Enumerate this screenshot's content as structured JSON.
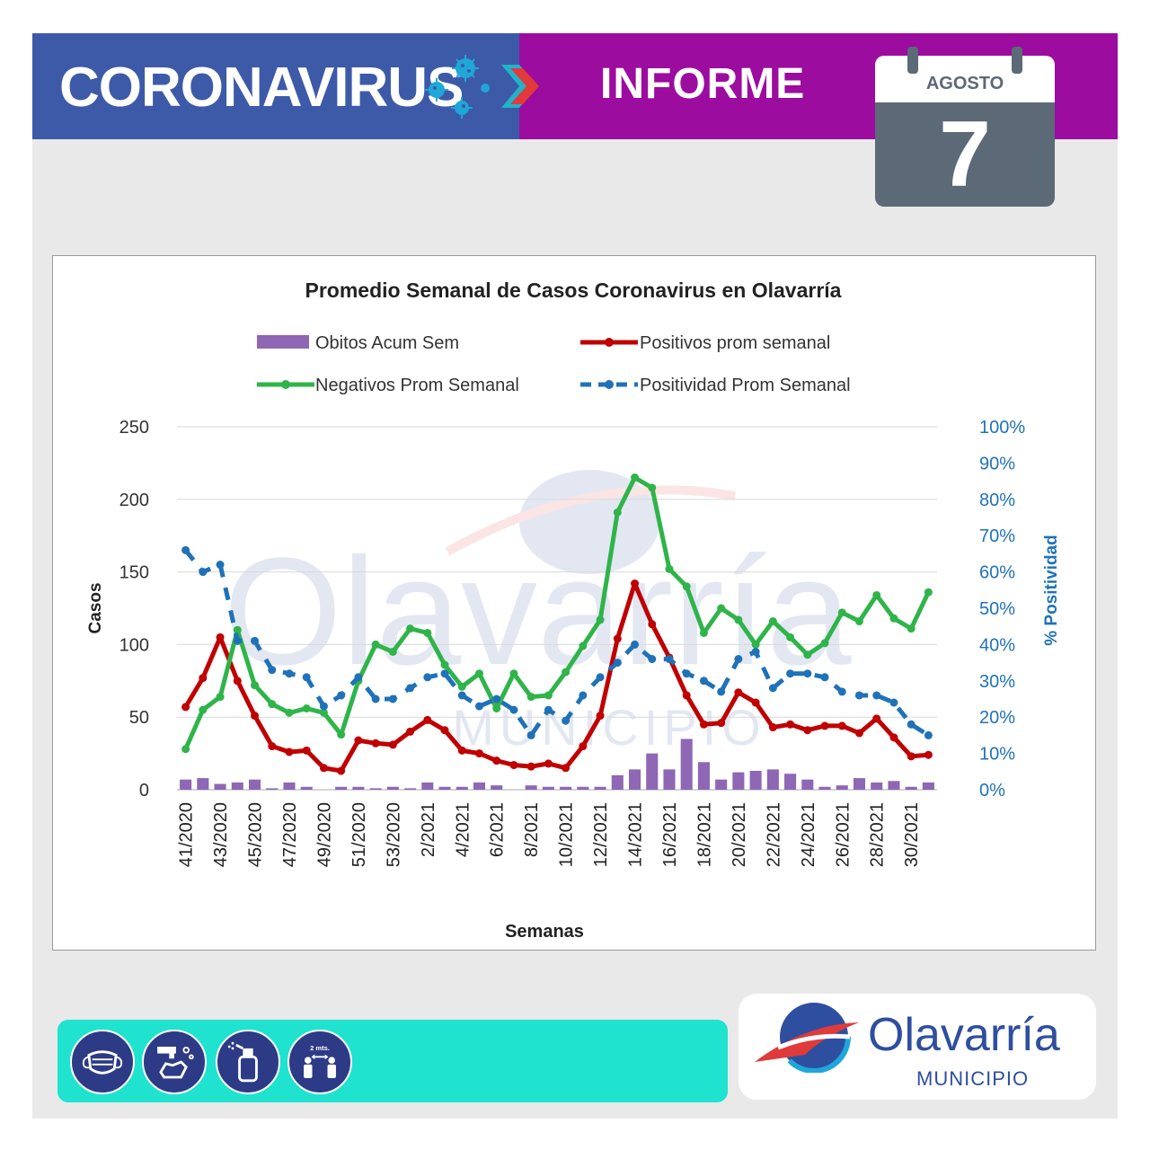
{
  "header": {
    "title": "CORONAVIRUS",
    "subtitle": "INFORME",
    "calendar_month": "AGOSTO",
    "calendar_day": "7",
    "colors": {
      "left": "#3d5aa8",
      "right": "#9b0c9f",
      "calendar": "#5c6977"
    }
  },
  "chart_data": {
    "type": "bar+line",
    "title": "Promedio Semanal de Casos Coronavirus en Olavarría",
    "xlabel": "Semanas",
    "ylabel": "Casos",
    "y2label": "% Positividad",
    "ylim": [
      0,
      250
    ],
    "y_ticks": [
      0,
      50,
      100,
      150,
      200,
      250
    ],
    "y2lim": [
      0,
      100
    ],
    "y2_ticks": [
      "0%",
      "10%",
      "20%",
      "30%",
      "40%",
      "50%",
      "60%",
      "70%",
      "80%",
      "90%",
      "100%"
    ],
    "x_tick_labels": [
      "41/2020",
      "43/2020",
      "45/2020",
      "47/2020",
      "49/2020",
      "51/2020",
      "53/2020",
      "2/2021",
      "4/2021",
      "6/2021",
      "8/2021",
      "10/2021",
      "12/2021",
      "14/2021",
      "16/2021",
      "18/2021",
      "20/2021",
      "22/2021",
      "24/2021",
      "26/2021",
      "28/2021",
      "30/2021"
    ],
    "categories": [
      "41/2020",
      "42/2020",
      "43/2020",
      "44/2020",
      "45/2020",
      "46/2020",
      "47/2020",
      "48/2020",
      "49/2020",
      "50/2020",
      "51/2020",
      "52/2020",
      "53/2020",
      "1/2021",
      "2/2021",
      "3/2021",
      "4/2021",
      "5/2021",
      "6/2021",
      "7/2021",
      "8/2021",
      "9/2021",
      "10/2021",
      "11/2021",
      "12/2021",
      "13/2021",
      "14/2021",
      "15/2021",
      "16/2021",
      "17/2021",
      "18/2021",
      "19/2021",
      "20/2021",
      "21/2021",
      "22/2021",
      "23/2021",
      "24/2021",
      "25/2021",
      "26/2021",
      "27/2021",
      "28/2021",
      "29/2021",
      "30/2021",
      "31/2021"
    ],
    "legend_placement": "top",
    "series": [
      {
        "name": "Obitos Acum Sem",
        "type": "bar",
        "axis": "left",
        "color": "#8e67b5",
        "values": [
          7,
          8,
          4,
          5,
          7,
          1,
          5,
          2,
          0,
          2,
          2,
          1,
          2,
          1,
          5,
          2,
          2,
          5,
          3,
          0,
          3,
          2,
          2,
          2,
          2,
          10,
          14,
          25,
          14,
          35,
          19,
          7,
          12,
          13,
          14,
          11,
          7,
          2,
          3,
          8,
          5,
          6,
          2,
          5
        ]
      },
      {
        "name": "Positivos prom semanal",
        "type": "line",
        "axis": "left",
        "color": "#c00000",
        "values": [
          57,
          77,
          105,
          75,
          51,
          30,
          26,
          27,
          15,
          13,
          34,
          32,
          31,
          40,
          48,
          41,
          27,
          25,
          20,
          17,
          16,
          18,
          15,
          30,
          51,
          104,
          142,
          114,
          91,
          65,
          45,
          46,
          67,
          60,
          43,
          45,
          41,
          44,
          44,
          39,
          49,
          36,
          23,
          24
        ]
      },
      {
        "name": "Negativos Prom Semanal",
        "type": "line",
        "axis": "left",
        "color": "#2fb44a",
        "values": [
          28,
          55,
          64,
          110,
          72,
          59,
          53,
          56,
          53,
          38,
          75,
          100,
          95,
          111,
          108,
          86,
          71,
          80,
          56,
          80,
          64,
          65,
          81,
          99,
          117,
          191,
          215,
          208,
          152,
          140,
          108,
          125,
          117,
          100,
          116,
          105,
          93,
          101,
          122,
          116,
          134,
          118,
          111,
          136
        ]
      },
      {
        "name": "Positividad Prom Semanal",
        "type": "line",
        "axis": "right",
        "dash": true,
        "color": "#1f72b8",
        "values": [
          66,
          60,
          62,
          41,
          41,
          33,
          32,
          31,
          23,
          26,
          31,
          25,
          25,
          28,
          31,
          32,
          26,
          23,
          25,
          22,
          15,
          22,
          19,
          26,
          31,
          35,
          40,
          36,
          36,
          32,
          30,
          27,
          36,
          38,
          28,
          32,
          32,
          31,
          27,
          26,
          26,
          24,
          18,
          15
        ]
      }
    ]
  },
  "watermark": {
    "name": "Olavarría",
    "sub": "MUNICIPIO"
  },
  "footer": {
    "icons": [
      "mask-icon",
      "handwash-icon",
      "sanitizer-icon",
      "distance-icon"
    ],
    "distance_label": "2 mts.",
    "logo_name": "Olavarría",
    "logo_sub": "MUNICIPIO"
  }
}
